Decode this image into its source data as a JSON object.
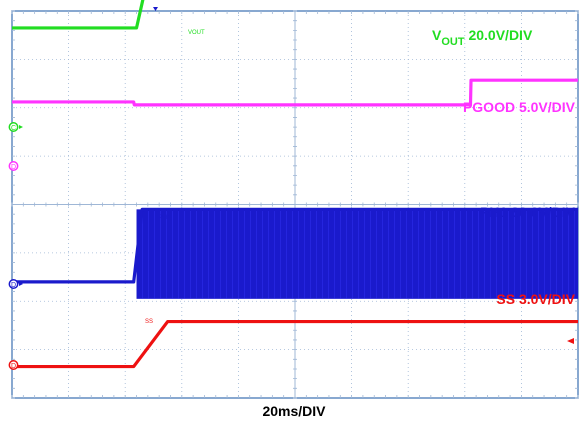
{
  "chart_data": {
    "type": "line",
    "title": "",
    "xlabel": "20ms/DIV",
    "x_divisions": 10,
    "y_divisions": 8,
    "grid": true,
    "colors": {
      "VOUT": "#22dd22",
      "PGOOD": "#ff33ff",
      "PH1": "#1a1acc",
      "SS": "#ee1111"
    },
    "channel_labels": {
      "vout_main": "V",
      "vout_sub": "OUT",
      "vout_scale": " 20.0V/DIV",
      "pgood": "PGOOD 5.0V/DIV",
      "ph1": "PH1 30.0V/DIV",
      "ss": "SS 3.0V/DIV"
    },
    "trace_tags": {
      "vout": "VOUT",
      "ph1": "PH1",
      "ss": "SS"
    },
    "channel_markers": {
      "vout": "C",
      "pgood": "D",
      "ph1": "D",
      "ss": "D"
    },
    "series": [
      {
        "name": "VOUT",
        "unit_per_div": "20.0V/DIV",
        "x": [
          0,
          2.2,
          2.45,
          10
        ],
        "y": [
          3.65,
          3.65,
          4.95,
          4.95
        ]
      },
      {
        "name": "PGOOD",
        "unit_per_div": "5.0V/DIV",
        "x": [
          0,
          2.15,
          2.16,
          8.1,
          8.11,
          10
        ],
        "y": [
          2.12,
          2.12,
          2.06,
          2.06,
          2.57,
          2.57
        ]
      },
      {
        "name": "PH1",
        "unit_per_div": "30.0V/DIV",
        "x": [
          0,
          2.15,
          2.3,
          10
        ],
        "y": [
          -1.6,
          -1.6,
          -0.1,
          -0.1
        ],
        "switching_band": {
          "x_start": 2.2,
          "x_end": 10,
          "y_low": -1.95,
          "y_high": -0.1
        }
      },
      {
        "name": "SS",
        "unit_per_div": "3.0V/DIV",
        "x": [
          0,
          2.15,
          2.75,
          10
        ],
        "y": [
          -3.35,
          -3.35,
          -2.42,
          -2.42
        ]
      }
    ]
  }
}
